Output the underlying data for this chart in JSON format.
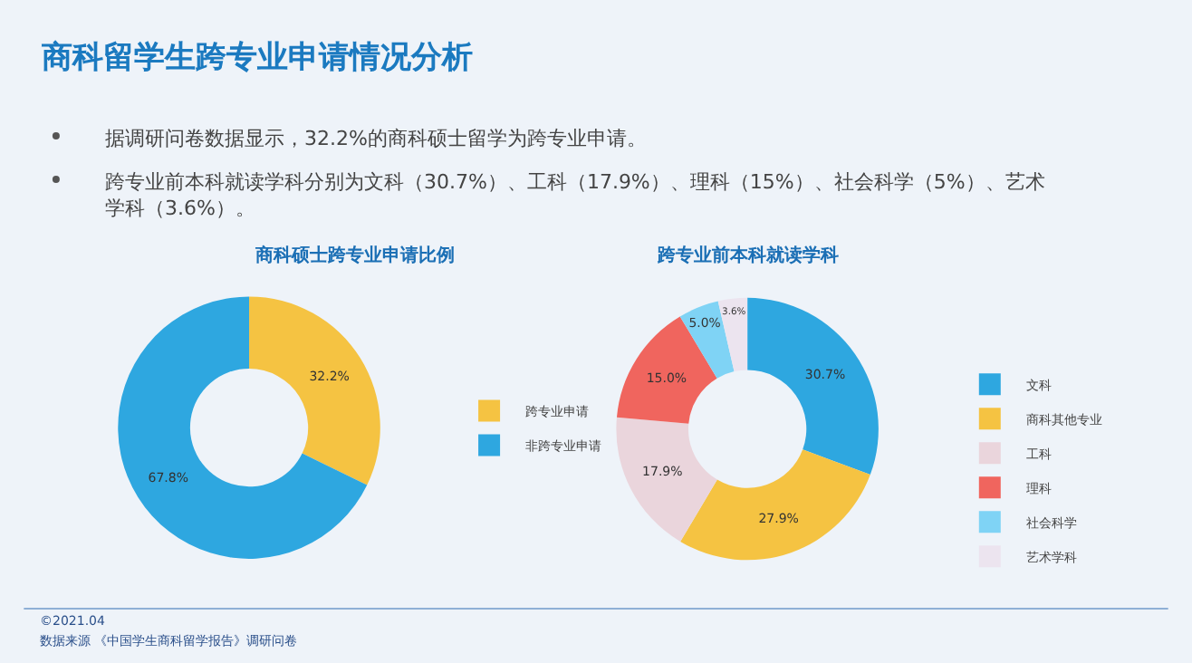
{
  "chart_data": [
    {
      "type": "donut",
      "title": "商科硕士跨专业申请比例",
      "categories": [
        "跨专业申请",
        "非跨专业申请"
      ],
      "values": [
        32.2,
        67.8
      ],
      "colors": [
        "#f5c342",
        "#2ea7e0"
      ],
      "value_labels": [
        "32.2%",
        "67.8%"
      ],
      "legend": "right",
      "annotations": [
        "商科留学生跨专业申请情况分析",
        "据调研问卷数据显示，32.2%的商科硕士留学为跨专业申请。",
        "跨专业前本科就读学科分别为文科（30.7%）、工科（17.9%）、理科（15%）、社会科学（5%）、艺术学科（3.6%）。"
      ]
    },
    {
      "type": "donut",
      "title": "跨专业前本科就读学科",
      "categories": [
        "文科",
        "商科其他专业",
        "工科",
        "理科",
        "社会科学",
        "艺术学科"
      ],
      "values": [
        30.7,
        27.9,
        17.9,
        15.0,
        5.0,
        3.6
      ],
      "colors": [
        "#2ea7e0",
        "#f5c342",
        "#ead5dc",
        "#f0655e",
        "#7fd3f5",
        "#ece4ef"
      ],
      "value_labels": [
        "30.7%",
        "27.9%",
        "17.9%",
        "15.0%",
        "5.0%",
        "3.6%"
      ],
      "legend": "right",
      "annotations": [
        "©2021.04",
        "数据来源 《中国学生商科留学报告》调研问卷"
      ]
    }
  ]
}
